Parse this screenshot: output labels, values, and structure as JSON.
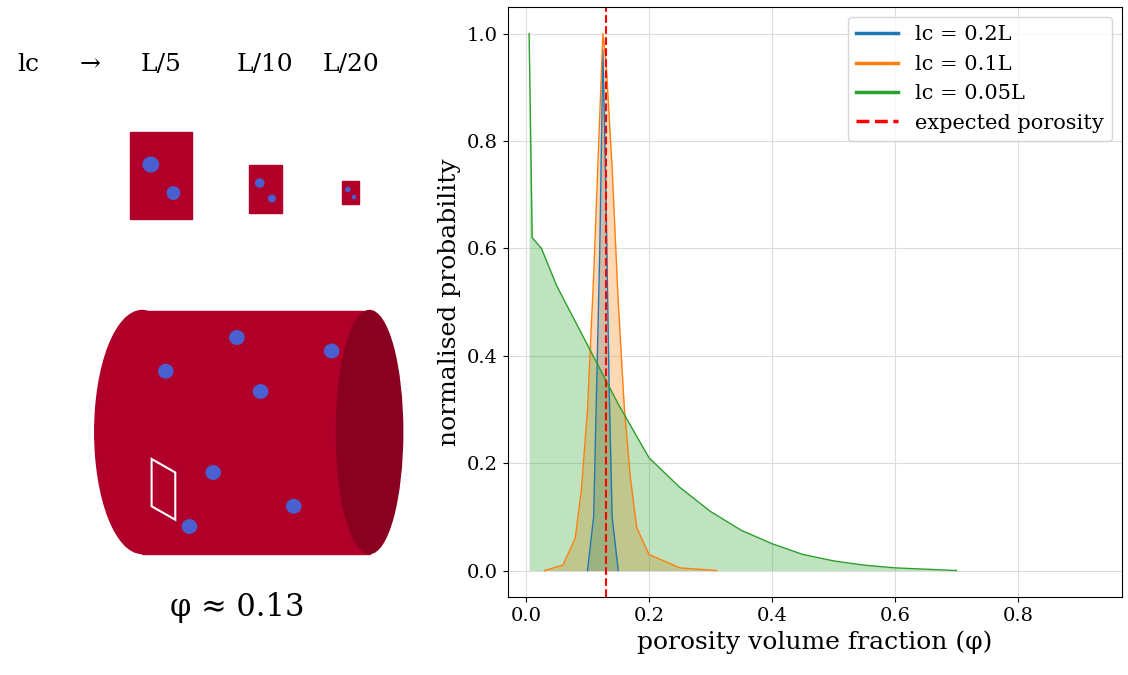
{
  "chart_data": {
    "type": "area",
    "xlabel": "porosity volume fraction (φ)",
    "ylabel": "normalised probability",
    "xlim": [
      -0.03,
      0.97
    ],
    "ylim": [
      -0.05,
      1.05
    ],
    "xticks": [
      {
        "value": 0.0,
        "label": "0.0"
      },
      {
        "value": 0.2,
        "label": "0.2"
      },
      {
        "value": 0.4,
        "label": "0.4"
      },
      {
        "value": 0.6,
        "label": "0.6"
      },
      {
        "value": 0.8,
        "label": "0.8"
      }
    ],
    "yticks": [
      {
        "value": 0.0,
        "label": "0.0"
      },
      {
        "value": 0.2,
        "label": "0.2"
      },
      {
        "value": 0.4,
        "label": "0.4"
      },
      {
        "value": 0.6,
        "label": "0.6"
      },
      {
        "value": 0.8,
        "label": "0.8"
      },
      {
        "value": 1.0,
        "label": "1.0"
      }
    ],
    "grid": true,
    "legend": "upper right",
    "series": [
      {
        "name": "lc = 0.2L",
        "color": "#1f77b4",
        "x": [
          0.1,
          0.11,
          0.12,
          0.125,
          0.13,
          0.135,
          0.14,
          0.15
        ],
        "values": [
          0.0,
          0.1,
          0.6,
          0.97,
          0.7,
          0.35,
          0.1,
          0.0
        ]
      },
      {
        "name": "lc = 0.1L",
        "color": "#ff7f0e",
        "x": [
          0.03,
          0.06,
          0.08,
          0.09,
          0.1,
          0.11,
          0.12,
          0.125,
          0.13,
          0.14,
          0.15,
          0.16,
          0.17,
          0.18,
          0.2,
          0.25,
          0.31
        ],
        "values": [
          0.0,
          0.01,
          0.06,
          0.15,
          0.3,
          0.55,
          0.85,
          1.0,
          0.95,
          0.75,
          0.5,
          0.3,
          0.17,
          0.08,
          0.03,
          0.005,
          0.0
        ]
      },
      {
        "name": "lc = 0.05L",
        "color": "#2ca02c",
        "x": [
          0.005,
          0.01,
          0.025,
          0.05,
          0.1,
          0.15,
          0.2,
          0.25,
          0.3,
          0.35,
          0.4,
          0.45,
          0.5,
          0.55,
          0.6,
          0.7
        ],
        "values": [
          1.0,
          0.62,
          0.6,
          0.53,
          0.42,
          0.31,
          0.21,
          0.155,
          0.11,
          0.075,
          0.05,
          0.03,
          0.018,
          0.01,
          0.005,
          0.0
        ]
      }
    ],
    "reference_line": {
      "name": "expected porosity",
      "x": 0.13,
      "color": "red",
      "line_style": "dashed"
    },
    "annotations": [
      "lc",
      "→",
      "L/5",
      "L/10",
      "L/20",
      "φ ≈ 0.13"
    ]
  }
}
